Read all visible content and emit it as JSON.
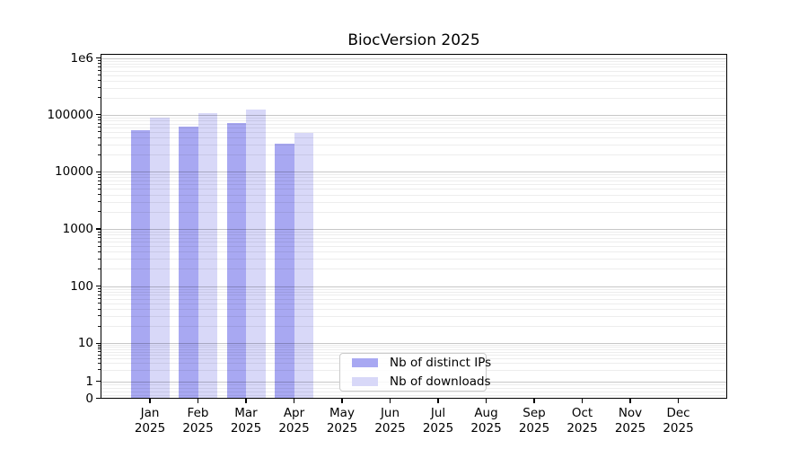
{
  "chart_data": {
    "type": "bar",
    "title": "BiocVersion 2025",
    "yscale": "symlog",
    "grid": true,
    "ylim": [
      0,
      1150000
    ],
    "categories": [
      "Jan",
      "Feb",
      "Mar",
      "Apr",
      "May",
      "Jun",
      "Jul",
      "Aug",
      "Sep",
      "Oct",
      "Nov",
      "Dec"
    ],
    "category_year": "2025",
    "series": [
      {
        "name": "Nb of distinct IPs",
        "color": "#a8a8f2",
        "values": [
          53000,
          61000,
          72000,
          31500,
          null,
          null,
          null,
          null,
          null,
          null,
          null,
          null
        ]
      },
      {
        "name": "Nb of downloads",
        "color": "#d8d8f8",
        "values": [
          90000,
          108000,
          122000,
          48500,
          null,
          null,
          null,
          null,
          null,
          null,
          null,
          null
        ]
      }
    ],
    "yticks": [
      {
        "label": "1e6",
        "value": 1000000
      },
      {
        "label": "100000",
        "value": 100000
      },
      {
        "label": "10000",
        "value": 10000
      },
      {
        "label": "1000",
        "value": 1000
      },
      {
        "label": "100",
        "value": 100
      },
      {
        "label": "10",
        "value": 10
      },
      {
        "label": "1",
        "value": 1
      },
      {
        "label": "0",
        "value": 0
      }
    ],
    "legend_position": "lower center"
  }
}
